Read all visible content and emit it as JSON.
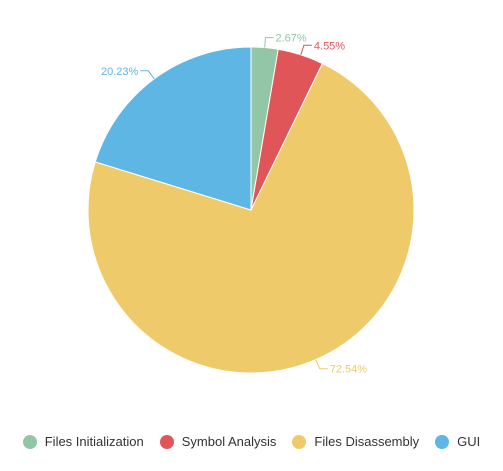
{
  "chart_data": {
    "type": "pie",
    "title": "",
    "categories": [
      "Files Initialization",
      "Symbol Analysis",
      "Files Disassembly",
      "GUI"
    ],
    "values": [
      2.67,
      4.55,
      72.54,
      20.23
    ],
    "value_labels": [
      "2.67%",
      "4.55%",
      "72.54%",
      "20.23%"
    ],
    "colors": [
      "#93c6a6",
      "#e05558",
      "#efca6a",
      "#5db6e4"
    ],
    "legend_position": "bottom",
    "start_angle": "top",
    "direction": "clockwise"
  },
  "legend": {
    "items": [
      {
        "label": "Files Initialization",
        "color": "#93c6a6"
      },
      {
        "label": "Symbol Analysis",
        "color": "#e05558"
      },
      {
        "label": "Files Disassembly",
        "color": "#efca6a"
      },
      {
        "label": "GUI",
        "color": "#5db6e4"
      }
    ]
  }
}
